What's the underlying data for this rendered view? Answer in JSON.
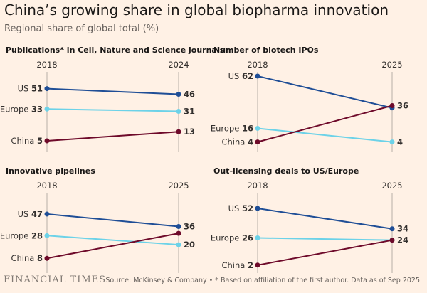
{
  "header": {
    "title": "China’s growing share in global biopharma innovation",
    "subtitle": "Regional share of global total (%)"
  },
  "footer": {
    "brand": "FINANCIAL TIMES",
    "source": "Source: McKinsey & Company • * Based on affiliation of the first author. Data as of Sep 2025"
  },
  "colors": {
    "US": "#1f4e96",
    "Europe": "#6cd2e8",
    "China": "#6e0a2a",
    "axis": "#b7aea6",
    "text": "#33302e"
  },
  "chart_data": [
    {
      "type": "line",
      "title": "Publications* in Cell, Nature and Science journals",
      "x": [
        "2018",
        "2024"
      ],
      "ylim": [
        0,
        100
      ],
      "series": [
        {
          "name": "US",
          "values": [
            51,
            46
          ]
        },
        {
          "name": "Europe",
          "values": [
            33,
            31
          ]
        },
        {
          "name": "China",
          "values": [
            5,
            13
          ]
        }
      ]
    },
    {
      "type": "line",
      "title": "Number of biotech IPOs",
      "x": [
        "2018",
        "2025"
      ],
      "ylim": [
        0,
        100
      ],
      "series": [
        {
          "name": "US",
          "values": [
            62,
            34
          ]
        },
        {
          "name": "Europe",
          "values": [
            16,
            4
          ]
        },
        {
          "name": "China",
          "values": [
            4,
            36
          ]
        }
      ],
      "end_labels": [
        "",
        "4",
        "36"
      ]
    },
    {
      "type": "line",
      "title": "Innovative pipelines",
      "x": [
        "2018",
        "2025"
      ],
      "ylim": [
        0,
        100
      ],
      "series": [
        {
          "name": "US",
          "values": [
            47,
            36
          ]
        },
        {
          "name": "Europe",
          "values": [
            28,
            20
          ]
        },
        {
          "name": "China",
          "values": [
            8,
            30
          ]
        }
      ],
      "end_labels": [
        "36",
        "20",
        ""
      ]
    },
    {
      "type": "line",
      "title": "Out-licensing deals to US/Europe",
      "x": [
        "2018",
        "2025"
      ],
      "ylim": [
        0,
        100
      ],
      "series": [
        {
          "name": "US",
          "values": [
            52,
            34
          ]
        },
        {
          "name": "Europe",
          "values": [
            26,
            24
          ]
        },
        {
          "name": "China",
          "values": [
            2,
            24
          ]
        }
      ],
      "end_labels": [
        "34",
        "24",
        ""
      ]
    }
  ]
}
